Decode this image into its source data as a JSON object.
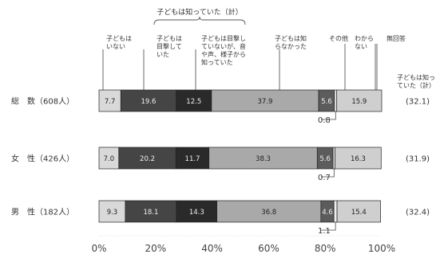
{
  "chart_data": {
    "type": "bar",
    "orientation": "horizontal",
    "stacked": true,
    "group_bracket_label": "子どもは知っていた（計）",
    "right_column_header": "子どもは知っていた（計）",
    "categories": [
      "総　数（608人）",
      "女　性（426人）",
      "男　性（182人）"
    ],
    "series": [
      {
        "name": "子どもはいない",
        "values": [
          7.7,
          7.0,
          9.3
        ],
        "labels": [
          "7.7",
          "7.0",
          "9.3"
        ],
        "color": "#d9d9d9"
      },
      {
        "name": "子どもは目撃していた",
        "values": [
          19.6,
          20.2,
          18.1
        ],
        "labels": [
          "19.6",
          "20.2",
          "18.1"
        ],
        "color": "#454545"
      },
      {
        "name": "子どもは目撃していないが、音や声、様子から知っていた",
        "values": [
          12.5,
          11.7,
          14.3
        ],
        "labels": [
          "12.5",
          "11.7",
          "14.3"
        ],
        "color": "#2a2a2a"
      },
      {
        "name": "子どもは知らなかった",
        "values": [
          37.9,
          38.3,
          36.8
        ],
        "labels": [
          "37.9",
          "38.3",
          "36.8"
        ],
        "color": "#a9a9a9"
      },
      {
        "name": "その他",
        "values": [
          5.6,
          5.6,
          4.6
        ],
        "labels": [
          "5.6",
          "5.6",
          "4.6"
        ],
        "color": "#5c5c5c"
      },
      {
        "name": "わからない",
        "values": [
          0.8,
          0.7,
          1.1
        ],
        "labels": [
          "0.8",
          "0.7",
          "1.1"
        ],
        "color": "#eeeeee"
      },
      {
        "name": "無回答",
        "values": [
          15.9,
          16.3,
          15.4
        ],
        "labels": [
          "15.9",
          "16.3",
          "15.4"
        ],
        "color": "#cfcfcf"
      }
    ],
    "group_totals": [
      "(32.1)",
      "(31.9)",
      "(32.4)"
    ],
    "x_ticks": [
      "0%",
      "20%",
      "40%",
      "60%",
      "80%",
      "100%"
    ],
    "xlim": [
      0,
      100
    ],
    "grid": false
  }
}
